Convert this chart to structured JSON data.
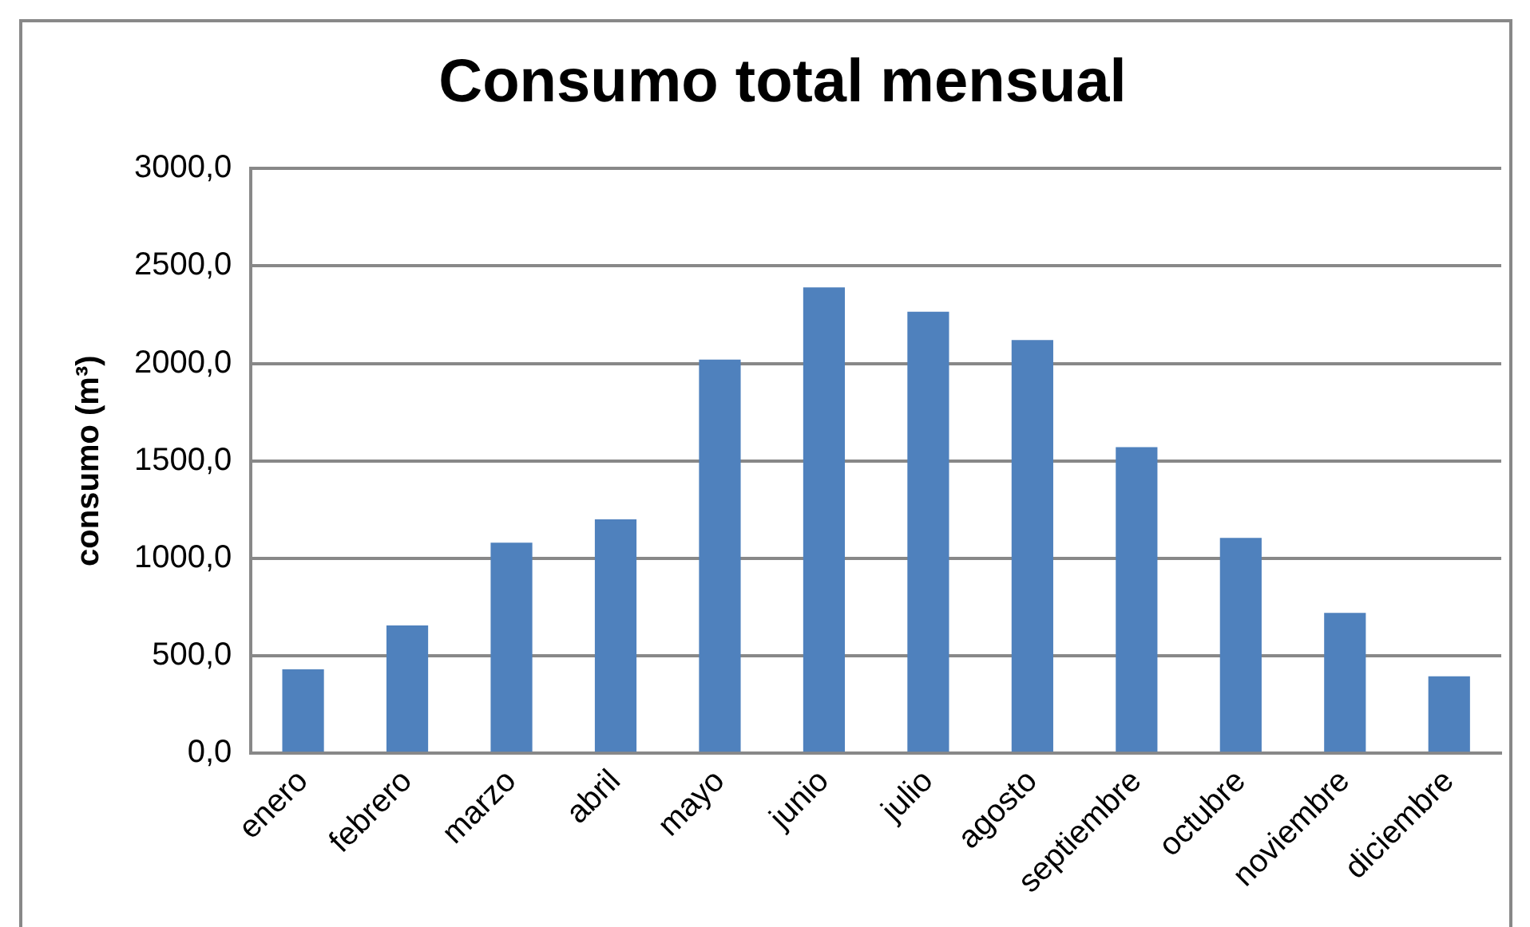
{
  "chart_data": {
    "type": "bar",
    "title": "Consumo total mensual",
    "ylabel": "consumo (m³)",
    "categories": [
      "enero",
      "febrero",
      "marzo",
      "abril",
      "mayo",
      "junio",
      "julio",
      "agosto",
      "septiembre",
      "octubre",
      "noviembre",
      "diciembre"
    ],
    "values": [
      430,
      655,
      1080,
      1200,
      2020,
      2390,
      2265,
      2120,
      1570,
      1105,
      720,
      395
    ],
    "color": "#4f81bd",
    "ylim": [
      0,
      3000
    ],
    "yticks": [
      {
        "value": 0,
        "label": "0,0"
      },
      {
        "value": 500,
        "label": "500,0"
      },
      {
        "value": 1000,
        "label": "1000,0"
      },
      {
        "value": 1500,
        "label": "1500,0"
      },
      {
        "value": 2000,
        "label": "2000,0"
      },
      {
        "value": 2500,
        "label": "2500,0"
      },
      {
        "value": 3000,
        "label": "3000,0"
      }
    ],
    "grid": "y",
    "legend": false
  }
}
